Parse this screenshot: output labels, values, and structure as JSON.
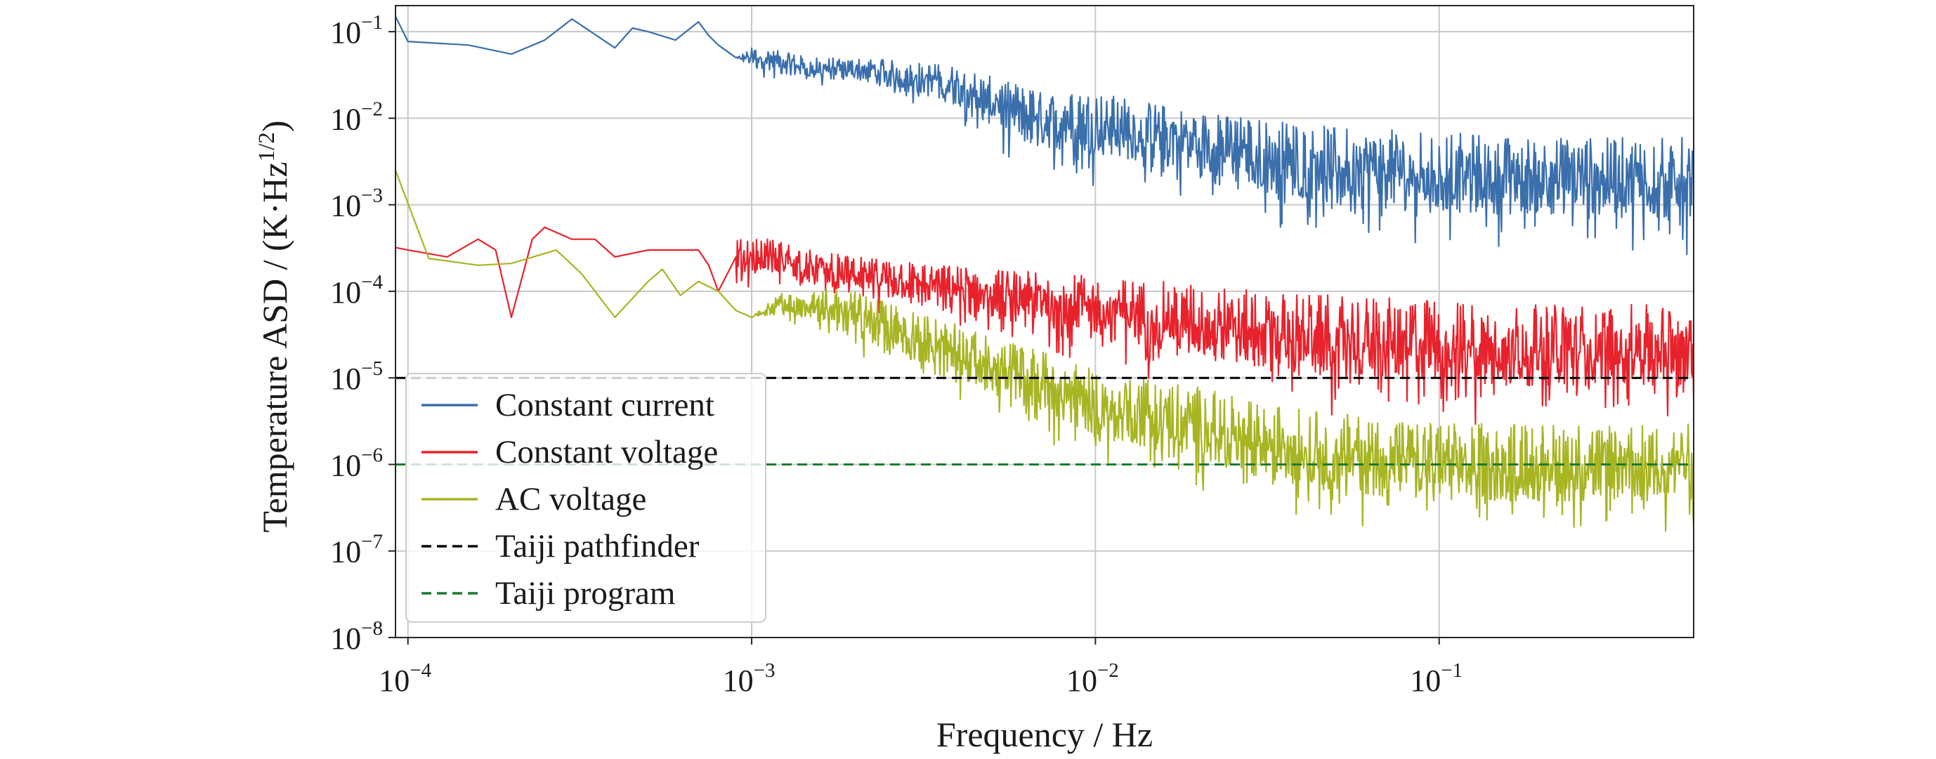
{
  "chart_data": {
    "type": "line",
    "xlabel": "Frequency / Hz",
    "ylabel": "Temperature ASD / (K·Hz^1/2)",
    "xscale": "log",
    "yscale": "log",
    "xlim": [
      9.2e-05,
      0.55
    ],
    "ylim": [
      1e-08,
      0.2
    ],
    "grid": true,
    "legend_position": "lower-left",
    "x_ticks": [
      {
        "base": "10",
        "exp": "−4"
      },
      {
        "base": "10",
        "exp": "−3"
      },
      {
        "base": "10",
        "exp": "−2"
      },
      {
        "base": "10",
        "exp": "−1"
      }
    ],
    "y_ticks": [
      {
        "base": "10",
        "exp": "−1"
      },
      {
        "base": "10",
        "exp": "−2"
      },
      {
        "base": "10",
        "exp": "−3"
      },
      {
        "base": "10",
        "exp": "−4"
      },
      {
        "base": "10",
        "exp": "−5"
      },
      {
        "base": "10",
        "exp": "−6"
      },
      {
        "base": "10",
        "exp": "−7"
      },
      {
        "base": "10",
        "exp": "−8"
      }
    ],
    "series": [
      {
        "name": "Constant current",
        "color": "#3a6fac",
        "style": "solid",
        "x": [
          9.2e-05,
          0.0001,
          0.00015,
          0.0002,
          0.00025,
          0.0003,
          0.0004,
          0.00045,
          0.0005,
          0.0006,
          0.0007,
          0.00075,
          0.0008,
          0.0009,
          0.001,
          0.0012,
          0.0015,
          0.002,
          0.003,
          0.004,
          0.005,
          0.006,
          0.007,
          0.01,
          0.015,
          0.02,
          0.03,
          0.05,
          0.1,
          0.2,
          0.3,
          0.55
        ],
        "y": [
          0.15,
          0.077,
          0.07,
          0.055,
          0.08,
          0.14,
          0.065,
          0.11,
          0.1,
          0.08,
          0.13,
          0.09,
          0.07,
          0.05,
          0.04,
          0.04,
          0.03,
          0.03,
          0.02,
          0.015,
          0.01,
          0.008,
          0.007,
          0.006,
          0.005,
          0.004,
          0.003,
          0.002,
          0.0015,
          0.0013,
          0.0012,
          0.0012
        ],
        "y_low": [
          0.15,
          0.077,
          0.07,
          0.055,
          0.08,
          0.14,
          0.065,
          0.11,
          0.1,
          0.08,
          0.13,
          0.09,
          0.07,
          0.05,
          0.03,
          0.025,
          0.02,
          0.02,
          0.012,
          0.008,
          0.004,
          0.002,
          0.002,
          0.0015,
          0.0012,
          0.0008,
          0.0005,
          0.0003,
          0.00025,
          0.00025,
          0.00025,
          0.00025
        ],
        "y_high": [
          0.15,
          0.077,
          0.07,
          0.055,
          0.08,
          0.14,
          0.065,
          0.11,
          0.1,
          0.08,
          0.13,
          0.09,
          0.07,
          0.05,
          0.065,
          0.06,
          0.05,
          0.05,
          0.045,
          0.04,
          0.03,
          0.025,
          0.02,
          0.02,
          0.015,
          0.012,
          0.01,
          0.008,
          0.007,
          0.006,
          0.006,
          0.006
        ]
      },
      {
        "name": "Constant voltage",
        "color": "#e8222c",
        "style": "solid",
        "x": [
          9.2e-05,
          0.0001,
          0.00013,
          0.00016,
          0.00018,
          0.0002,
          0.00023,
          0.00025,
          0.0003,
          0.00035,
          0.0004,
          0.0005,
          0.0006,
          0.0007,
          0.00075,
          0.0008,
          0.0009,
          0.001,
          0.0012,
          0.0015,
          0.002,
          0.003,
          0.005,
          0.01,
          0.02,
          0.03,
          0.05,
          0.1,
          0.2,
          0.55
        ],
        "y": [
          0.00032,
          0.0003,
          0.00025,
          0.0004,
          0.0003,
          5e-05,
          0.0004,
          0.00055,
          0.0004,
          0.0004,
          0.00025,
          0.0003,
          0.0003,
          0.0003,
          0.0002,
          0.0001,
          0.00025,
          0.0002,
          0.00025,
          0.0002,
          0.00015,
          0.00013,
          0.0001,
          8e-05,
          6e-05,
          5e-05,
          4e-05,
          3.5e-05,
          3e-05,
          3e-05
        ],
        "y_low": [
          0.00032,
          0.0003,
          0.00025,
          0.0004,
          0.0003,
          5e-05,
          0.0004,
          0.00055,
          0.0004,
          0.0004,
          0.00025,
          0.0003,
          0.0003,
          0.0003,
          0.0002,
          2.8e-05,
          8e-05,
          0.0001,
          0.0001,
          8e-05,
          6e-05,
          4e-05,
          2.5e-05,
          1.2e-05,
          6e-06,
          4e-06,
          3e-06,
          2.5e-06,
          2.5e-06,
          2.5e-06
        ],
        "y_high": [
          0.00032,
          0.0003,
          0.00025,
          0.0004,
          0.0003,
          5e-05,
          0.0004,
          0.00055,
          0.0004,
          0.0004,
          0.00025,
          0.0003,
          0.0003,
          0.0003,
          0.0002,
          0.0001,
          0.0004,
          0.0004,
          0.0004,
          0.0003,
          0.00025,
          0.00022,
          0.00018,
          0.00015,
          0.00012,
          0.0001,
          9e-05,
          8e-05,
          7e-05,
          7e-05
        ]
      },
      {
        "name": "AC voltage",
        "color": "#a8b523",
        "style": "solid",
        "x": [
          9.2e-05,
          0.000115,
          0.00016,
          0.0002,
          0.00027,
          0.00032,
          0.0004,
          0.0005,
          0.00055,
          0.00062,
          0.0007,
          0.0008,
          0.0009,
          0.001,
          0.0012,
          0.0015,
          0.0018,
          0.002,
          0.003,
          0.005,
          0.008,
          0.01,
          0.02,
          0.03,
          0.05,
          0.1,
          0.2,
          0.55
        ],
        "y": [
          0.0025,
          0.00024,
          0.0002,
          0.00021,
          0.0003,
          0.00016,
          5e-05,
          0.00013,
          0.00018,
          9e-05,
          0.00013,
          0.0001,
          6e-05,
          5e-05,
          8e-05,
          6e-05,
          0.00012,
          4e-05,
          2.5e-05,
          1.2e-05,
          6e-06,
          4e-06,
          2.5e-06,
          1.5e-06,
          1e-06,
          8e-07,
          7e-07,
          7e-07
        ],
        "y_low": [
          0.0025,
          0.00024,
          0.0002,
          0.00021,
          0.0003,
          0.00016,
          5e-05,
          0.00013,
          0.00018,
          9e-05,
          0.00013,
          0.0001,
          6e-05,
          5e-05,
          4e-05,
          3e-05,
          2e-05,
          1.5e-05,
          8e-06,
          3e-06,
          1.2e-06,
          8e-07,
          4e-07,
          2.5e-07,
          1.5e-07,
          1.2e-07,
          1.2e-07,
          1.2e-07
        ],
        "y_high": [
          0.0025,
          0.00024,
          0.0002,
          0.00021,
          0.0003,
          0.00016,
          5e-05,
          0.00013,
          0.00018,
          9e-05,
          0.00013,
          0.0001,
          6e-05,
          5e-05,
          0.0001,
          0.0001,
          0.00012,
          0.0001,
          6e-05,
          3e-05,
          1.8e-05,
          1.2e-05,
          8e-06,
          5e-06,
          4e-06,
          3e-06,
          3e-06,
          3e-06
        ]
      },
      {
        "name": "Taiji pathfinder",
        "color": "#000000",
        "style": "dashed",
        "x": [
          9.2e-05,
          0.55
        ],
        "y": [
          1e-05,
          1e-05
        ]
      },
      {
        "name": "Taiji program",
        "color": "#1b7a2e",
        "style": "dashed",
        "x": [
          9.2e-05,
          0.55
        ],
        "y": [
          1e-06,
          1e-06
        ]
      }
    ]
  }
}
